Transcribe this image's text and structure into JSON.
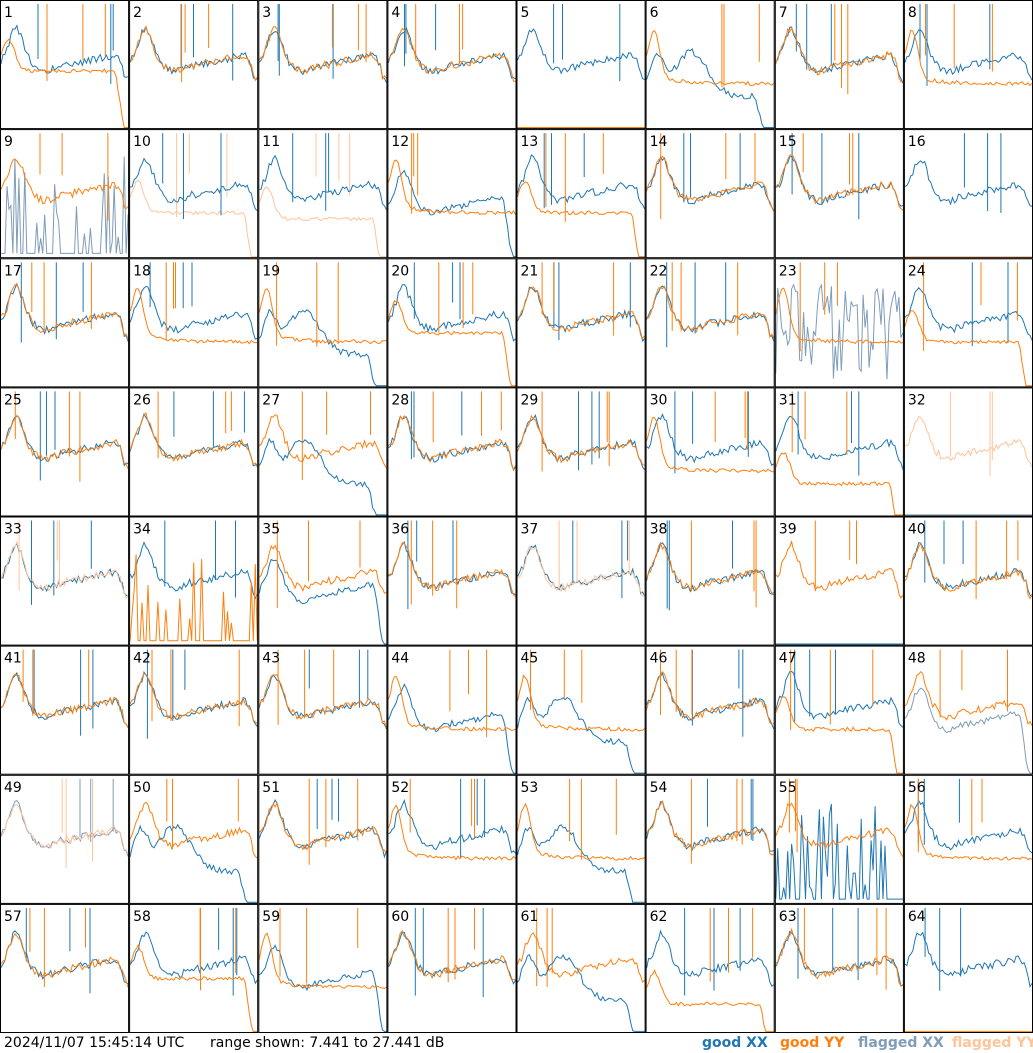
{
  "footer": {
    "timestamp": "2024/11/07 15:45:14 UTC",
    "range_text": "range shown: 7.441 to 27.441 dB"
  },
  "legend": [
    {
      "key": "good_xx",
      "label": "good",
      "pol": "XX",
      "color": "#1f77b4"
    },
    {
      "key": "good_yy",
      "label": "good",
      "pol": "YY",
      "color": "#ff7f0e"
    },
    {
      "key": "flagged_xx",
      "label": "flagged",
      "pol": "XX",
      "color": "#7f9cb9"
    },
    {
      "key": "flagged_yy",
      "label": "flagged",
      "pol": "YY",
      "color": "#ffc499"
    }
  ],
  "chart_data": {
    "type": "line",
    "grid": "8x8 small multiples",
    "y_range_db": [
      7.441,
      27.441
    ],
    "colors": {
      "good_xx": "#1f77b4",
      "good_yy": "#ff7f0e",
      "flagged_xx": "#7f9cb9",
      "flagged_yy": "#ffc499"
    },
    "tiles": [
      {
        "label": "1",
        "xx": "good",
        "yy": "good",
        "xx_shape": "normal",
        "yy_shape": "rolloff",
        "front": "yy",
        "yy_level": 0.45
      },
      {
        "label": "2",
        "xx": "good",
        "yy": "good",
        "xx_shape": "normal",
        "yy_shape": "normal",
        "front": "yy"
      },
      {
        "label": "3",
        "xx": "good",
        "yy": "good",
        "xx_shape": "normal",
        "yy_shape": "normal",
        "front": "yy"
      },
      {
        "label": "4",
        "xx": "good",
        "yy": "good",
        "xx_shape": "normal",
        "yy_shape": "normal",
        "front": "yy"
      },
      {
        "label": "5",
        "xx": "good",
        "yy": "good",
        "xx_shape": "normal",
        "yy_shape": "dead",
        "front": "xx"
      },
      {
        "label": "6",
        "xx": "good",
        "yy": "good",
        "xx_shape": "dip",
        "yy_shape": "flat",
        "front": "yy"
      },
      {
        "label": "7",
        "xx": "good",
        "yy": "good",
        "xx_shape": "normal",
        "yy_shape": "normal",
        "front": "yy"
      },
      {
        "label": "8",
        "xx": "good",
        "yy": "good",
        "xx_shape": "normal",
        "yy_shape": "flat",
        "front": "yy"
      },
      {
        "label": "9",
        "xx": "flagged",
        "yy": "good",
        "xx_shape": "spikes",
        "yy_shape": "normal",
        "front": "yy"
      },
      {
        "label": "10",
        "xx": "good",
        "yy": "flagged",
        "xx_shape": "normal",
        "yy_shape": "rolloff",
        "front": "xx",
        "yy_level": 0.35
      },
      {
        "label": "11",
        "xx": "good",
        "yy": "flagged",
        "xx_shape": "normal",
        "yy_shape": "rolloff",
        "front": "xx",
        "yy_level": 0.3
      },
      {
        "label": "12",
        "xx": "good",
        "yy": "good",
        "xx_shape": "droop",
        "yy_shape": "flat",
        "front": "yy"
      },
      {
        "label": "13",
        "xx": "good",
        "yy": "good",
        "xx_shape": "normal",
        "yy_shape": "rolloff",
        "front": "yy",
        "yy_level": 0.35
      },
      {
        "label": "14",
        "xx": "good",
        "yy": "good",
        "xx_shape": "normal",
        "yy_shape": "normal",
        "front": "yy"
      },
      {
        "label": "15",
        "xx": "good",
        "yy": "good",
        "xx_shape": "normal",
        "yy_shape": "normal",
        "front": "yy"
      },
      {
        "label": "16",
        "xx": "good",
        "yy": "flagged",
        "xx_shape": "normal",
        "yy_shape": "dead",
        "front": "xx"
      },
      {
        "label": "17",
        "xx": "good",
        "yy": "good",
        "xx_shape": "normal",
        "yy_shape": "normal",
        "front": "yy"
      },
      {
        "label": "18",
        "xx": "good",
        "yy": "good",
        "xx_shape": "normal",
        "yy_shape": "flat",
        "front": "yy"
      },
      {
        "label": "19",
        "xx": "good",
        "yy": "good",
        "xx_shape": "dip",
        "yy_shape": "flat",
        "front": "yy"
      },
      {
        "label": "20",
        "xx": "good",
        "yy": "good",
        "xx_shape": "normal",
        "yy_shape": "rolloff",
        "front": "yy",
        "yy_level": 0.42
      },
      {
        "label": "21",
        "xx": "good",
        "yy": "good",
        "xx_shape": "normal",
        "yy_shape": "normal",
        "front": "yy"
      },
      {
        "label": "22",
        "xx": "good",
        "yy": "good",
        "xx_shape": "normal",
        "yy_shape": "normal",
        "front": "yy"
      },
      {
        "label": "23",
        "xx": "flagged",
        "yy": "good",
        "xx_shape": "noisy",
        "yy_shape": "flat",
        "front": "yy"
      },
      {
        "label": "24",
        "xx": "good",
        "yy": "good",
        "xx_shape": "normal",
        "yy_shape": "rolloff",
        "front": "yy",
        "yy_level": 0.35
      },
      {
        "label": "25",
        "xx": "good",
        "yy": "good",
        "xx_shape": "normal",
        "yy_shape": "normal",
        "front": "yy"
      },
      {
        "label": "26",
        "xx": "good",
        "yy": "good",
        "xx_shape": "normal",
        "yy_shape": "normal",
        "front": "yy"
      },
      {
        "label": "27",
        "xx": "good",
        "yy": "good",
        "xx_shape": "dip",
        "yy_shape": "normal",
        "front": "xx"
      },
      {
        "label": "28",
        "xx": "good",
        "yy": "good",
        "xx_shape": "normal",
        "yy_shape": "normal",
        "front": "yy"
      },
      {
        "label": "29",
        "xx": "good",
        "yy": "good",
        "xx_shape": "normal",
        "yy_shape": "normal",
        "front": "yy"
      },
      {
        "label": "30",
        "xx": "good",
        "yy": "good",
        "xx_shape": "normal",
        "yy_shape": "flat",
        "front": "yy"
      },
      {
        "label": "31",
        "xx": "good",
        "yy": "good",
        "xx_shape": "normal",
        "yy_shape": "rolloff",
        "front": "yy",
        "yy_level": 0.25
      },
      {
        "label": "32",
        "xx": "flagged",
        "yy": "flagged",
        "xx_shape": "dead",
        "yy_shape": "normal",
        "front": "yy"
      },
      {
        "label": "33",
        "xx": "good",
        "yy": "flagged",
        "xx_shape": "normal",
        "yy_shape": "normal",
        "front": "yy"
      },
      {
        "label": "34",
        "xx": "good",
        "yy": "good",
        "xx_shape": "normal",
        "yy_shape": "spikes",
        "front": "yy"
      },
      {
        "label": "35",
        "xx": "good",
        "yy": "good",
        "xx_shape": "droop",
        "yy_shape": "normal",
        "front": "yy"
      },
      {
        "label": "36",
        "xx": "good",
        "yy": "good",
        "xx_shape": "normal",
        "yy_shape": "normal",
        "front": "yy"
      },
      {
        "label": "37",
        "xx": "good",
        "yy": "flagged",
        "xx_shape": "normal",
        "yy_shape": "normal",
        "front": "yy"
      },
      {
        "label": "38",
        "xx": "good",
        "yy": "good",
        "xx_shape": "normal",
        "yy_shape": "normal",
        "front": "yy"
      },
      {
        "label": "39",
        "xx": "good",
        "yy": "good",
        "xx_shape": "dead",
        "yy_shape": "normal",
        "front": "yy"
      },
      {
        "label": "40",
        "xx": "good",
        "yy": "good",
        "xx_shape": "normal",
        "yy_shape": "normal",
        "front": "yy"
      },
      {
        "label": "41",
        "xx": "good",
        "yy": "good",
        "xx_shape": "normal",
        "yy_shape": "normal",
        "front": "yy"
      },
      {
        "label": "42",
        "xx": "good",
        "yy": "good",
        "xx_shape": "normal",
        "yy_shape": "normal",
        "front": "yy"
      },
      {
        "label": "43",
        "xx": "good",
        "yy": "good",
        "xx_shape": "normal",
        "yy_shape": "normal",
        "front": "yy"
      },
      {
        "label": "44",
        "xx": "good",
        "yy": "good",
        "xx_shape": "droop",
        "yy_shape": "flat",
        "front": "yy"
      },
      {
        "label": "45",
        "xx": "good",
        "yy": "good",
        "xx_shape": "dip",
        "yy_shape": "flat",
        "front": "yy"
      },
      {
        "label": "46",
        "xx": "good",
        "yy": "good",
        "xx_shape": "normal",
        "yy_shape": "normal",
        "front": "yy"
      },
      {
        "label": "47",
        "xx": "good",
        "yy": "good",
        "xx_shape": "normal",
        "yy_shape": "rolloff",
        "front": "yy",
        "yy_level": 0.35
      },
      {
        "label": "48",
        "xx": "flagged",
        "yy": "good",
        "xx_shape": "droop",
        "yy_shape": "normal",
        "front": "yy"
      },
      {
        "label": "49",
        "xx": "flagged",
        "yy": "flagged",
        "xx_shape": "normal",
        "yy_shape": "normal",
        "front": "yy"
      },
      {
        "label": "50",
        "xx": "good",
        "yy": "good",
        "xx_shape": "dip",
        "yy_shape": "normal",
        "front": "yy"
      },
      {
        "label": "51",
        "xx": "good",
        "yy": "good",
        "xx_shape": "normal",
        "yy_shape": "normal",
        "front": "yy"
      },
      {
        "label": "52",
        "xx": "good",
        "yy": "good",
        "xx_shape": "normal",
        "yy_shape": "flat",
        "front": "yy"
      },
      {
        "label": "53",
        "xx": "good",
        "yy": "good",
        "xx_shape": "dip",
        "yy_shape": "flat",
        "front": "yy"
      },
      {
        "label": "54",
        "xx": "good",
        "yy": "good",
        "xx_shape": "normal",
        "yy_shape": "normal",
        "front": "yy"
      },
      {
        "label": "55",
        "xx": "good",
        "yy": "good",
        "xx_shape": "spikes",
        "yy_shape": "normal",
        "front": "yy"
      },
      {
        "label": "56",
        "xx": "good",
        "yy": "good",
        "xx_shape": "normal",
        "yy_shape": "flat",
        "front": "yy"
      },
      {
        "label": "57",
        "xx": "good",
        "yy": "good",
        "xx_shape": "normal",
        "yy_shape": "normal",
        "front": "yy"
      },
      {
        "label": "58",
        "xx": "good",
        "yy": "good",
        "xx_shape": "normal",
        "yy_shape": "rolloff",
        "front": "yy",
        "yy_level": 0.42
      },
      {
        "label": "59",
        "xx": "good",
        "yy": "good",
        "xx_shape": "droop",
        "yy_shape": "flat",
        "front": "yy"
      },
      {
        "label": "60",
        "xx": "good",
        "yy": "good",
        "xx_shape": "normal",
        "yy_shape": "normal",
        "front": "yy"
      },
      {
        "label": "61",
        "xx": "good",
        "yy": "good",
        "xx_shape": "dip",
        "yy_shape": "normal",
        "front": "xx"
      },
      {
        "label": "62",
        "xx": "good",
        "yy": "good",
        "xx_shape": "normal",
        "yy_shape": "rolloff",
        "front": "yy",
        "yy_level": 0.22
      },
      {
        "label": "63",
        "xx": "good",
        "yy": "good",
        "xx_shape": "normal",
        "yy_shape": "normal",
        "front": "yy"
      },
      {
        "label": "64",
        "xx": "good",
        "yy": "good",
        "xx_shape": "normal",
        "yy_shape": "dead",
        "front": "xx"
      }
    ]
  }
}
